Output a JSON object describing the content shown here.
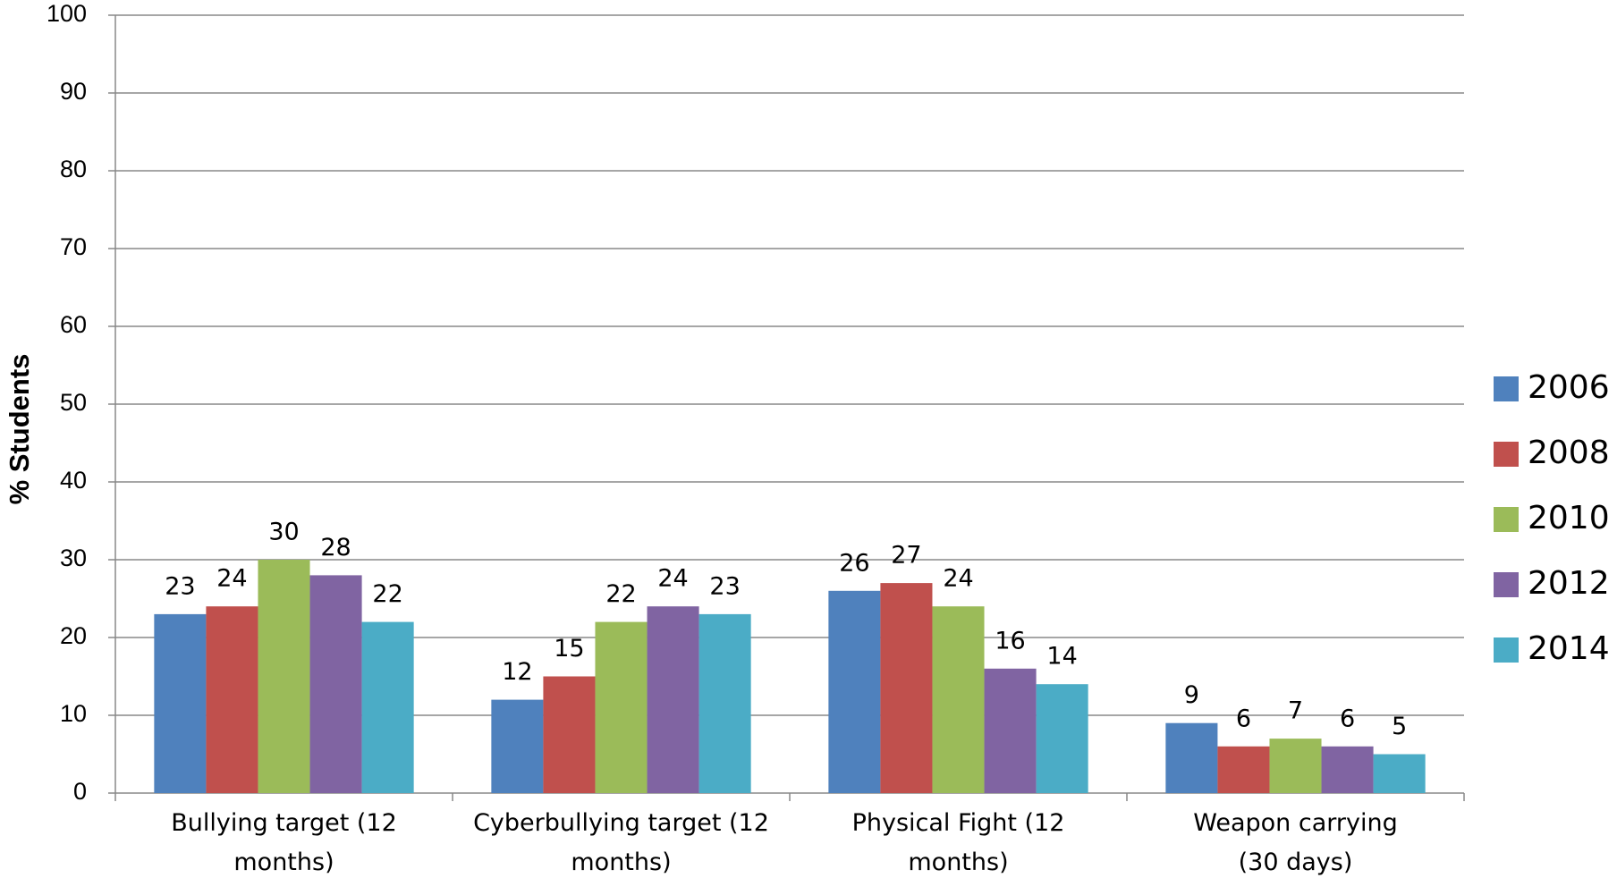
{
  "chart_data": {
    "type": "bar",
    "y_label": "% Students",
    "categories": [
      "Bullying target (12\nmonths)",
      "Cyberbullying target (12\nmonths)",
      "Physical Fight (12\nmonths)",
      "Weapon carrying\n(30 days)"
    ],
    "series": [
      {
        "name": "2006",
        "color": "#4f81bd",
        "values": [
          23,
          12,
          26,
          9
        ]
      },
      {
        "name": "2008",
        "color": "#c0504d",
        "values": [
          24,
          15,
          27,
          6
        ]
      },
      {
        "name": "2010",
        "color": "#9bbb59",
        "values": [
          30,
          22,
          24,
          7
        ]
      },
      {
        "name": "2012",
        "color": "#8064a2",
        "values": [
          28,
          24,
          16,
          6
        ]
      },
      {
        "name": "2014",
        "color": "#4bacc6",
        "values": [
          22,
          23,
          14,
          5
        ]
      }
    ],
    "ylim": [
      0,
      100
    ],
    "yticks": [
      0,
      10,
      20,
      30,
      40,
      50,
      60,
      70,
      80,
      90,
      100
    ],
    "grid": true,
    "legend": "right"
  }
}
